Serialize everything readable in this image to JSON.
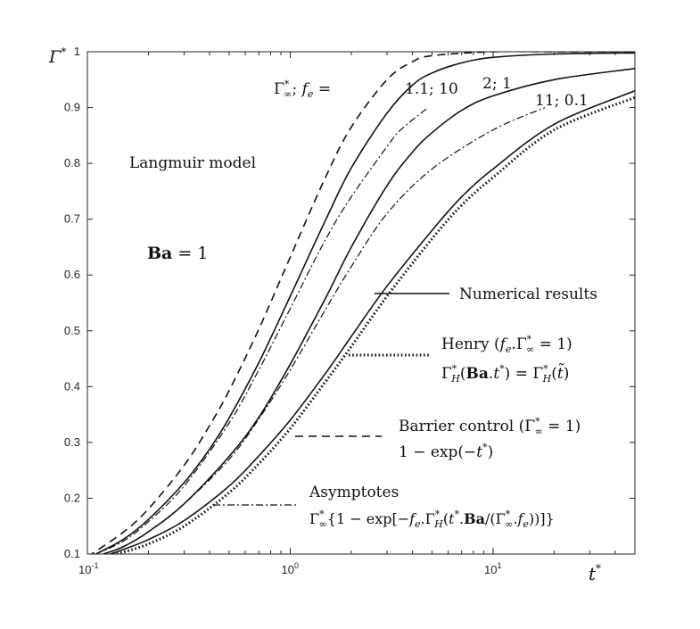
{
  "chart_data": {
    "type": "line",
    "title": "",
    "xlabel": "t*",
    "ylabel": "Γ*",
    "xscale": "log",
    "xlim": [
      0.1,
      50
    ],
    "ylim": [
      0.1,
      1.0
    ],
    "grid": false,
    "x_ticks": [
      0.1,
      1,
      10
    ],
    "x_tick_labels": [
      {
        "base": "10",
        "exp": "-1"
      },
      {
        "base": "10",
        "exp": "0"
      },
      {
        "base": "10",
        "exp": "1"
      }
    ],
    "y_ticks": [
      0.1,
      0.2,
      0.3,
      0.4,
      0.5,
      0.6,
      0.7,
      0.8,
      0.9,
      1
    ],
    "y_tick_labels": [
      "0.1",
      "0.2",
      "0.3",
      "0.4",
      "0.5",
      "0.6",
      "0.7",
      "0.8",
      "0.9",
      "1"
    ],
    "annotations": {
      "model": "Langmuir model",
      "ba_bold": "Ba",
      "ba_eq": " = 1",
      "param_header": "Γ*∞; fe =",
      "curve_labels": [
        "1.1; 10",
        "2; 1",
        "11; 0.1"
      ]
    },
    "legend": [
      {
        "style": "solid",
        "lines": [
          "Numerical results"
        ]
      },
      {
        "style": "dotted",
        "lines": [
          "Henry (fe.Γ*∞ = 1)",
          "Γ*H(Ba.t*) = Γ*H(t̃)"
        ]
      },
      {
        "style": "dashed",
        "lines": [
          "Barrier control (Γ*∞ = 1)",
          "1 − exp(−t*)"
        ]
      },
      {
        "style": "dashdot",
        "lines": [
          "Asymptotes",
          "Γ*∞{1 − exp[−fe.Γ*H(t*.Ba/(Γ*∞.fe))]}"
        ]
      }
    ],
    "series": [
      {
        "style": "dashed",
        "x": [
          0.1,
          0.15,
          0.2,
          0.3,
          0.4,
          0.5,
          0.7,
          1,
          1.5,
          2,
          3,
          4,
          5,
          10,
          20,
          50
        ],
        "y": [
          0.095,
          0.139,
          0.181,
          0.259,
          0.33,
          0.393,
          0.503,
          0.632,
          0.777,
          0.865,
          0.95,
          0.982,
          0.993,
          1.0,
          1.0,
          1.0
        ]
      },
      {
        "style": "solid",
        "x": [
          0.11,
          0.15,
          0.2,
          0.3,
          0.4,
          0.5,
          0.7,
          1,
          1.5,
          2,
          3,
          4,
          5,
          7,
          10,
          20,
          50
        ],
        "y": [
          0.1,
          0.126,
          0.162,
          0.228,
          0.288,
          0.344,
          0.443,
          0.562,
          0.7,
          0.792,
          0.89,
          0.94,
          0.962,
          0.98,
          0.99,
          0.996,
          0.998
        ]
      },
      {
        "style": "solid",
        "x": [
          0.12,
          0.15,
          0.2,
          0.3,
          0.5,
          0.7,
          1,
          1.5,
          2,
          3,
          4,
          5,
          7,
          10,
          20,
          50
        ],
        "y": [
          0.1,
          0.113,
          0.14,
          0.19,
          0.275,
          0.345,
          0.44,
          0.56,
          0.65,
          0.76,
          0.82,
          0.855,
          0.895,
          0.921,
          0.95,
          0.97
        ]
      },
      {
        "style": "solid",
        "x": [
          0.13,
          0.15,
          0.2,
          0.3,
          0.5,
          0.7,
          1,
          1.5,
          2,
          3,
          5,
          7,
          10,
          20,
          50
        ],
        "y": [
          0.1,
          0.108,
          0.126,
          0.16,
          0.222,
          0.276,
          0.34,
          0.425,
          0.49,
          0.58,
          0.68,
          0.74,
          0.79,
          0.87,
          0.93
        ]
      },
      {
        "style": "dotted",
        "x": [
          0.14,
          0.2,
          0.3,
          0.5,
          0.7,
          1,
          1.5,
          2,
          3,
          5,
          7,
          10,
          20,
          50
        ],
        "y": [
          0.1,
          0.118,
          0.15,
          0.21,
          0.262,
          0.325,
          0.41,
          0.472,
          0.562,
          0.665,
          0.725,
          0.775,
          0.86,
          0.918
        ]
      },
      {
        "style": "dashdot",
        "x": [
          0.11,
          0.15,
          0.2,
          0.3,
          0.5,
          0.7,
          1,
          1.5,
          2,
          3,
          3.5,
          4.7
        ],
        "y": [
          0.1,
          0.123,
          0.158,
          0.222,
          0.335,
          0.43,
          0.54,
          0.665,
          0.74,
          0.83,
          0.86,
          0.898
        ]
      },
      {
        "style": "dashdot",
        "x": [
          0.12,
          0.15,
          0.2,
          0.3,
          0.5,
          0.7,
          1,
          1.5,
          2,
          3,
          5,
          10,
          18
        ],
        "y": [
          0.1,
          0.113,
          0.14,
          0.19,
          0.27,
          0.342,
          0.43,
          0.54,
          0.615,
          0.71,
          0.79,
          0.86,
          0.9
        ]
      }
    ]
  }
}
